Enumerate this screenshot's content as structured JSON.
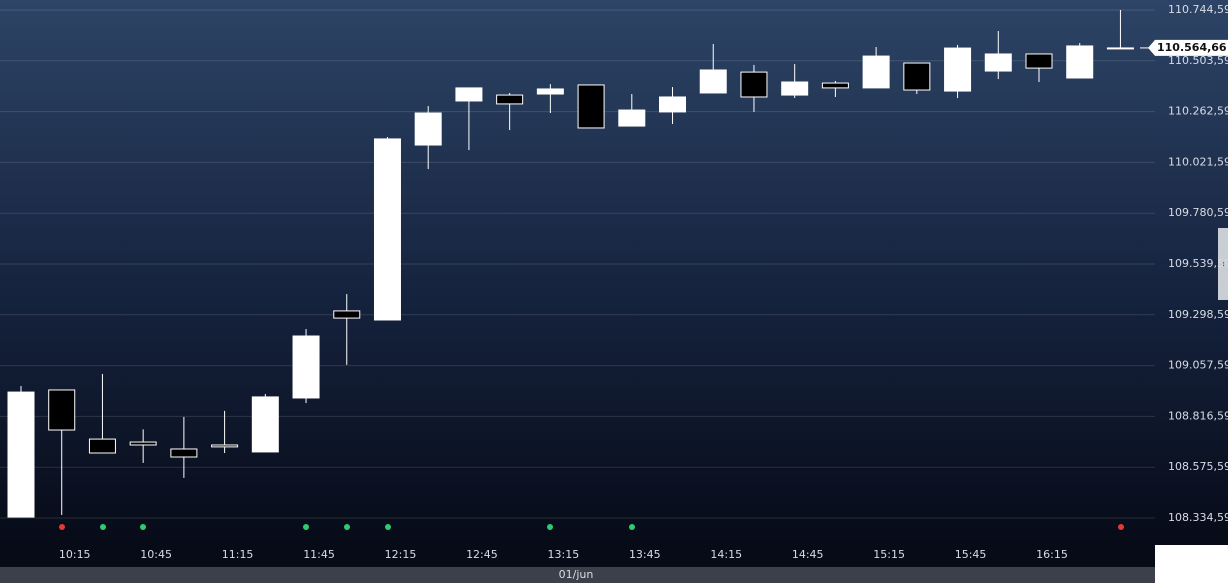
{
  "chart_data": {
    "type": "candlestick",
    "categories": [
      null,
      "10:15",
      null,
      "10:45",
      null,
      "11:15",
      null,
      "11:45",
      null,
      "12:15",
      null,
      "12:45",
      null,
      "13:15",
      null,
      "13:45",
      null,
      "14:15",
      null,
      "14:45",
      null,
      "15:15",
      null,
      "15:45",
      null,
      "16:15",
      null,
      null
    ],
    "open": [
      108339,
      108942,
      108709,
      108695,
      108662,
      108681,
      108648,
      108904,
      109317,
      109274,
      110104,
      110313,
      110341,
      110346,
      110389,
      110194,
      110261,
      110351,
      110450,
      110341,
      110398,
      110375,
      110493,
      110360,
      110455,
      110536,
      110422,
      110564.66
    ],
    "high": [
      108961,
      108942,
      109018,
      108755,
      108814,
      108843,
      108923,
      109231,
      109397,
      110142,
      110289,
      110375,
      110351,
      110393,
      110389,
      110346,
      110379,
      110583,
      110484,
      110488,
      110408,
      110569,
      110493,
      110579,
      110645,
      110536,
      110588,
      110744.59
    ],
    "low": [
      108339,
      108349,
      108643,
      108596,
      108525,
      108643,
      108648,
      108880,
      109061,
      109274,
      109990,
      110080,
      110175,
      110256,
      110185,
      110194,
      110204,
      110351,
      110261,
      110327,
      110332,
      110375,
      110346,
      110327,
      110417,
      110403,
      110422,
      110564.66
    ],
    "close": [
      108932,
      108752,
      108643,
      108681,
      108624,
      108672,
      108909,
      109198,
      109283,
      110133,
      110256,
      110375,
      110299,
      110370,
      110185,
      110270,
      110332,
      110460,
      110332,
      110403,
      110375,
      110526,
      110365,
      110564,
      110536,
      110469,
      110574,
      110564.66
    ],
    "up_color": "#ffffff",
    "down_color": "#000000",
    "ylim": [
      108334.59,
      110744.59
    ],
    "yticks": [
      {
        "value": 108334.59,
        "label": "108.334,59"
      },
      {
        "value": 108575.59,
        "label": "108.575,59"
      },
      {
        "value": 108816.59,
        "label": "108.816,59"
      },
      {
        "value": 109057.59,
        "label": "109.057,59"
      },
      {
        "value": 109298.59,
        "label": "109.298,59"
      },
      {
        "value": 109539.59,
        "label": "109.539,59"
      },
      {
        "value": 109780.59,
        "label": "109.780,59"
      },
      {
        "value": 110021.59,
        "label": "110.021,59"
      },
      {
        "value": 110262.59,
        "label": "110.262,59"
      },
      {
        "value": 110503.59,
        "label": "110.503,59"
      },
      {
        "value": 110744.59,
        "label": "110.744,59"
      }
    ],
    "grid": true,
    "last_price": {
      "value": 110564.66,
      "label": "110.564,66"
    },
    "date_label": "01/jun"
  }
}
